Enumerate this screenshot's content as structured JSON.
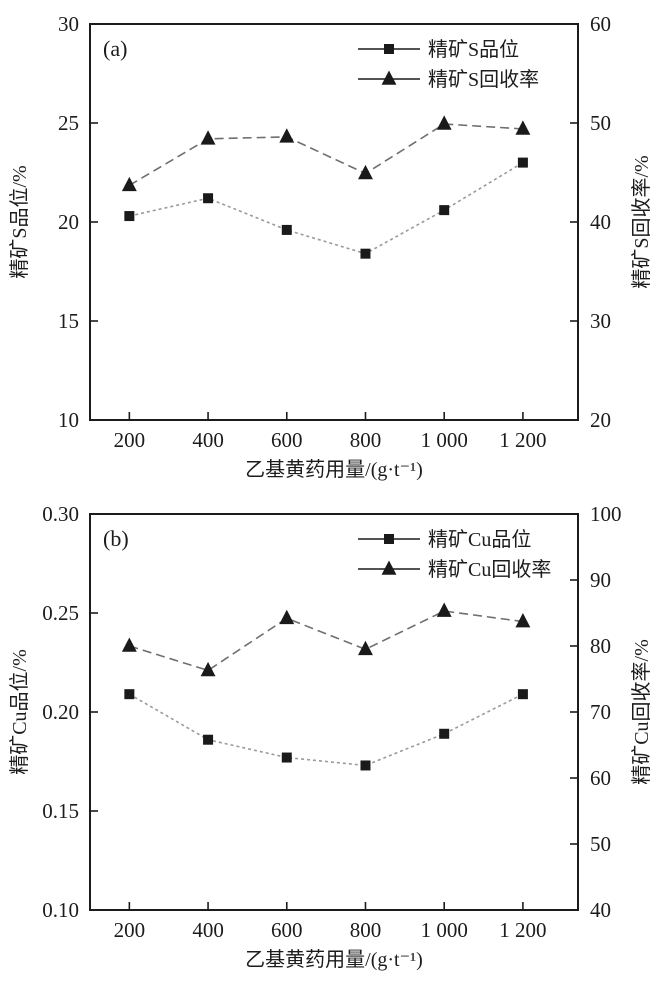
{
  "colors": {
    "axis": "#1c1c1c",
    "marker": "#1a1a1a",
    "grade_line": "#9a9a9a",
    "recovery_line": "#6f6f6f",
    "text": "#1c1c1c",
    "background": "#ffffff"
  },
  "chart_data": [
    {
      "type": "line",
      "panel_label": "(a)",
      "xlabel": "乙基黄药用量/(g·t⁻¹)",
      "x_ticks": [
        200,
        400,
        600,
        800,
        1000,
        1200
      ],
      "x_tick_labels": [
        "200",
        "400",
        "600",
        "800",
        "1 000",
        "1 200"
      ],
      "xlim": [
        100,
        1340
      ],
      "left_axis": {
        "label": "精矿S品位/%",
        "ticks": [
          10,
          15,
          20,
          25,
          30
        ],
        "tick_labels": [
          "10",
          "15",
          "20",
          "25",
          "30"
        ],
        "range": [
          10,
          30
        ]
      },
      "right_axis": {
        "label": "精矿S回收率/%",
        "ticks": [
          20,
          30,
          40,
          50,
          60
        ],
        "tick_labels": [
          "20",
          "30",
          "40",
          "50",
          "60"
        ],
        "range": [
          20,
          60
        ]
      },
      "legend_position": "top-right-inside",
      "grid": false,
      "series": [
        {
          "name": "精矿S品位",
          "axis": "left",
          "marker": "square",
          "x": [
            200,
            400,
            600,
            800,
            1000,
            1200
          ],
          "values": [
            20.3,
            21.2,
            19.6,
            18.4,
            20.6,
            23.0
          ]
        },
        {
          "name": "精矿S回收率",
          "axis": "right",
          "marker": "triangle",
          "x": [
            200,
            400,
            600,
            800,
            1000,
            1200
          ],
          "values": [
            43.7,
            48.4,
            48.6,
            44.9,
            49.9,
            49.4
          ]
        }
      ]
    },
    {
      "type": "line",
      "panel_label": "(b)",
      "xlabel": "乙基黄药用量/(g·t⁻¹)",
      "x_ticks": [
        200,
        400,
        600,
        800,
        1000,
        1200
      ],
      "x_tick_labels": [
        "200",
        "400",
        "600",
        "800",
        "1 000",
        "1 200"
      ],
      "xlim": [
        100,
        1340
      ],
      "left_axis": {
        "label": "精矿Cu品位/%",
        "ticks": [
          0.1,
          0.15,
          0.2,
          0.25,
          0.3
        ],
        "tick_labels": [
          "0.10",
          "0.15",
          "0.20",
          "0.25",
          "0.30"
        ],
        "range": [
          0.1,
          0.3
        ]
      },
      "right_axis": {
        "label": "精矿Cu回收率/%",
        "ticks": [
          40,
          50,
          60,
          70,
          80,
          90,
          100
        ],
        "tick_labels": [
          "40",
          "50",
          "60",
          "70",
          "80",
          "90",
          "100"
        ],
        "range": [
          40,
          100
        ]
      },
      "legend_position": "top-right-inside",
      "grid": false,
      "series": [
        {
          "name": "精矿Cu品位",
          "axis": "left",
          "marker": "square",
          "x": [
            200,
            400,
            600,
            800,
            1000,
            1200
          ],
          "values": [
            0.209,
            0.186,
            0.177,
            0.173,
            0.189,
            0.209
          ]
        },
        {
          "name": "精矿Cu回收率",
          "axis": "right",
          "marker": "triangle",
          "x": [
            200,
            400,
            600,
            800,
            1000,
            1200
          ],
          "values": [
            80.0,
            76.3,
            84.2,
            79.5,
            85.3,
            83.7
          ]
        }
      ]
    }
  ]
}
